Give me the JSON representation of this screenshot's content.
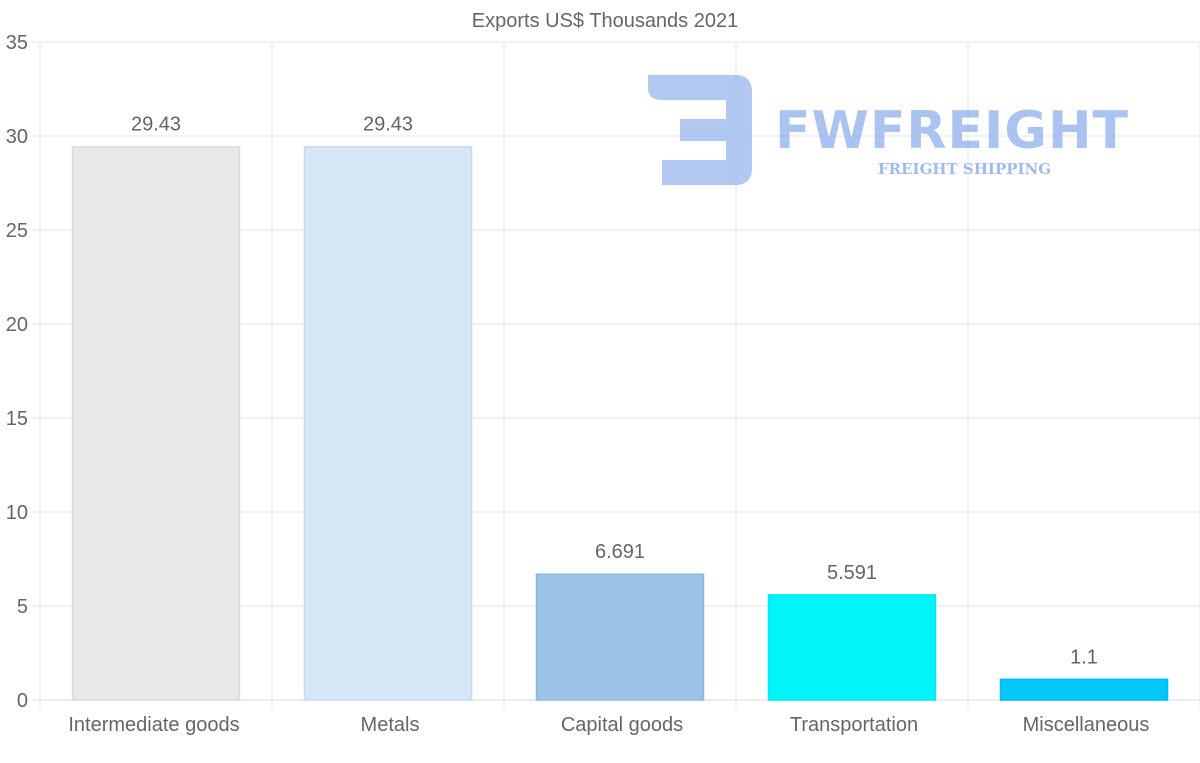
{
  "chart_data": {
    "type": "bar",
    "title": "Exports US$ Thousands 2021",
    "categories": [
      "Intermediate goods",
      "Metals",
      "Capital goods",
      "Transportation",
      "Miscellaneous"
    ],
    "values": [
      29.43,
      29.43,
      6.691,
      5.591,
      1.1
    ],
    "value_labels": [
      "29.43",
      "29.43",
      "6.691",
      "5.591",
      "1.1"
    ],
    "colors": [
      "#e8e8e8",
      "#d6e7f8",
      "#9cc4e8",
      "#00f5f8",
      "#00c8fa"
    ],
    "ylim": [
      0,
      35
    ],
    "yticks": [
      0,
      5,
      10,
      15,
      20,
      25,
      30,
      35
    ],
    "xlabel": "",
    "ylabel": "",
    "grid": true
  },
  "watermark": {
    "brand": "FWFREIGHT",
    "tagline": "FREIGHT SHIPPING",
    "color": "#8fb0ec"
  }
}
